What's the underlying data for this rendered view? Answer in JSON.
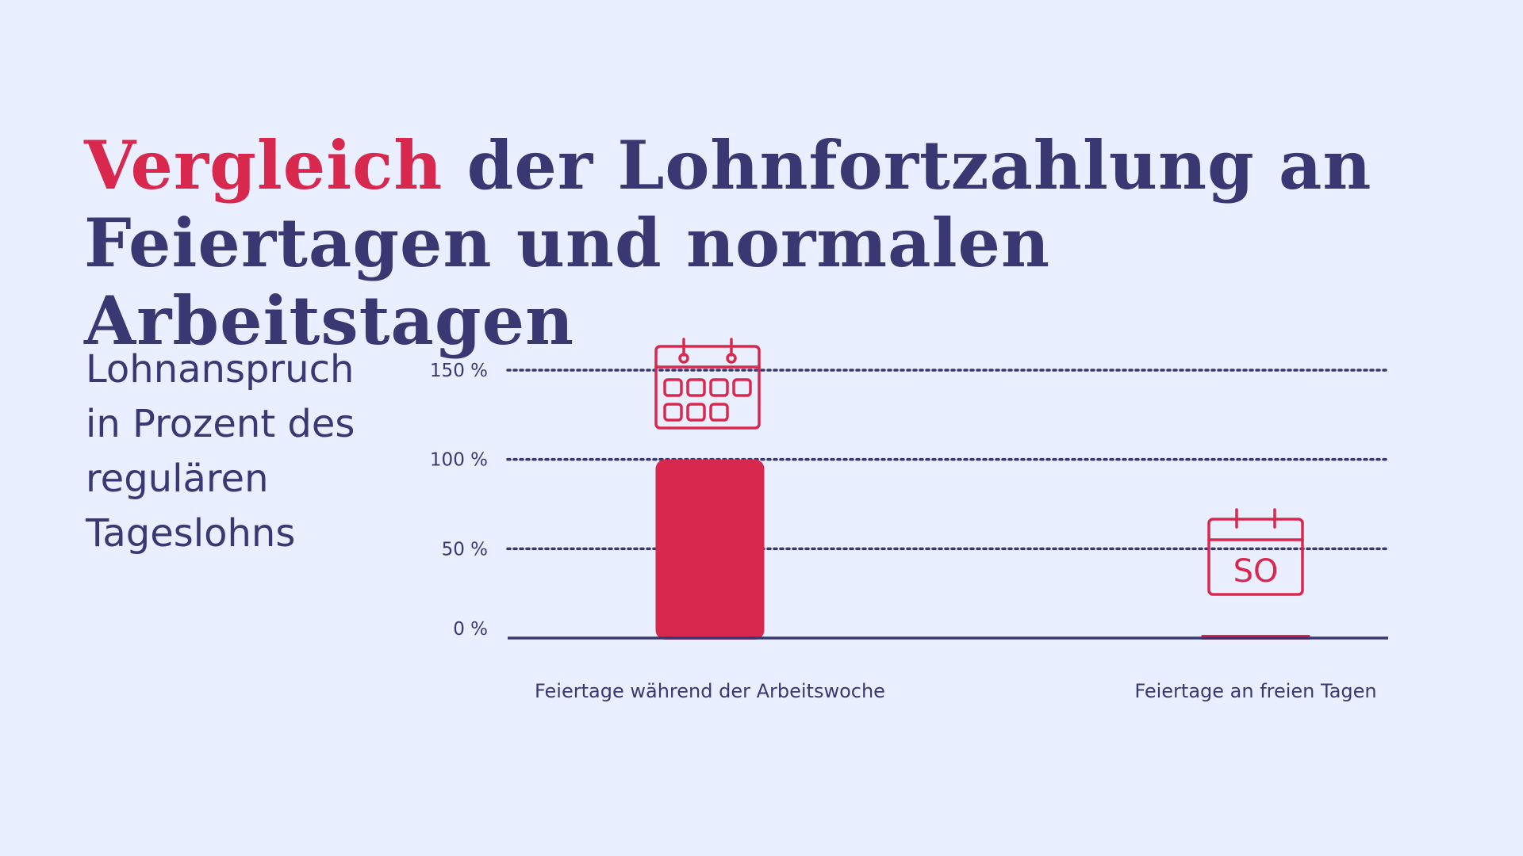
{
  "title": {
    "highlight": "Vergleich",
    "rest": " der Lohnfortzahlung an Feiertagen und normalen Arbeitstagen"
  },
  "y_label_lines": [
    "Lohnanspruch",
    "in Prozent des",
    "regulären",
    "Tageslohns"
  ],
  "colors": {
    "background": "#e9efff",
    "primary": "#3a3873",
    "accent": "#d8284e"
  },
  "chart_data": {
    "type": "bar",
    "categories": [
      "Feiertage während der Arbeitswoche",
      "Feiertage an freien Tagen"
    ],
    "values": [
      100,
      0
    ],
    "ylabel": "Lohnanspruch in Prozent des regulären Tageslohns",
    "ylim": [
      0,
      150
    ],
    "yticks": [
      0,
      50,
      100,
      150
    ],
    "ytick_labels": [
      "0 %",
      "50 %",
      "100 %",
      "150 %"
    ],
    "grid": "dotted horizontal",
    "legend": "none",
    "icons": [
      "calendar-workweek-icon",
      "calendar-sunday-icon"
    ],
    "icon_text": [
      "",
      "SO"
    ]
  }
}
